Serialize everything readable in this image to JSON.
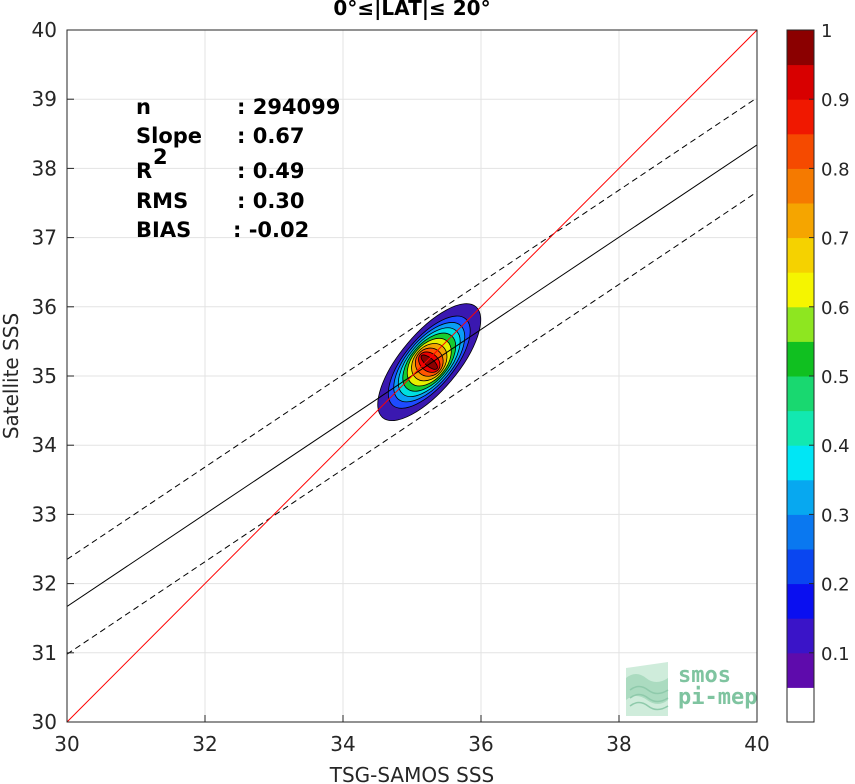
{
  "chart_data": {
    "type": "contour",
    "title": "0°≤|LAT|≤ 20°",
    "xlabel": "TSG-SAMOS SSS",
    "ylabel": "Satellite SSS",
    "xlim": [
      30,
      40
    ],
    "ylim": [
      30,
      40
    ],
    "xticks": [
      "30",
      "32",
      "34",
      "36",
      "38",
      "40"
    ],
    "yticks": [
      "30",
      "31",
      "32",
      "33",
      "34",
      "35",
      "36",
      "37",
      "38",
      "39",
      "40"
    ],
    "grid": true,
    "stats": [
      {
        "label": "n",
        "value": ": 294099"
      },
      {
        "label": "Slope",
        "value": ": 0.67"
      },
      {
        "label": "R",
        "sup": "2",
        "value": ": 0.49"
      },
      {
        "label": "RMS",
        "value": ": 0.30"
      },
      {
        "label": "BIAS",
        "value": ": -0.02"
      }
    ],
    "lines": {
      "identity": {
        "x": [
          30,
          40
        ],
        "y": [
          30,
          40
        ],
        "color": "#ff0000"
      },
      "fit": {
        "x": [
          30,
          40
        ],
        "y": [
          31.67,
          38.34
        ],
        "color": "#000000"
      },
      "fit_upper": {
        "x": [
          30,
          40
        ],
        "y": [
          32.35,
          39.02
        ],
        "color": "#000000",
        "style": "dashed"
      },
      "fit_lower": {
        "x": [
          30,
          40
        ],
        "y": [
          30.98,
          37.66
        ],
        "color": "#000000",
        "style": "dashed"
      }
    },
    "density_center": {
      "x": 35.25,
      "y": 35.2
    },
    "contour_levels": [
      {
        "level": 0.05,
        "color": "#3a18b0",
        "rx": 1.05,
        "ry": 0.3
      },
      {
        "level": 0.2,
        "color": "#1e4bff",
        "rx": 0.82,
        "ry": 0.24
      },
      {
        "level": 0.3,
        "color": "#0a9ef5",
        "rx": 0.7,
        "ry": 0.21
      },
      {
        "level": 0.4,
        "color": "#00e0e0",
        "rx": 0.6,
        "ry": 0.18
      },
      {
        "level": 0.5,
        "color": "#16cc30",
        "rx": 0.5,
        "ry": 0.155
      },
      {
        "level": 0.6,
        "color": "#e6f000",
        "rx": 0.4,
        "ry": 0.13
      },
      {
        "level": 0.7,
        "color": "#f5a500",
        "rx": 0.3,
        "ry": 0.105
      },
      {
        "level": 0.8,
        "color": "#ff5500",
        "rx": 0.21,
        "ry": 0.08
      },
      {
        "level": 0.9,
        "color": "#ee0000",
        "rx": 0.13,
        "ry": 0.055
      },
      {
        "level": 1.0,
        "color": "#8b0000",
        "rx": 0.06,
        "ry": 0.03
      }
    ],
    "colorbar": {
      "ticks": [
        "0.1",
        "0.2",
        "0.3",
        "0.4",
        "0.5",
        "0.6",
        "0.7",
        "0.8",
        "0.9",
        "1"
      ],
      "colors": [
        "#ffffff",
        "#5e0bac",
        "#3a14c8",
        "#0a0ff0",
        "#0a46f0",
        "#0a78f0",
        "#07a8f0",
        "#00e6f5",
        "#12e8b0",
        "#19d870",
        "#10c020",
        "#8ee620",
        "#f5f500",
        "#f5d200",
        "#f5a500",
        "#f57a00",
        "#f54a00",
        "#f01800",
        "#d80000",
        "#8b0000"
      ]
    },
    "logo": [
      "smos",
      "pi-mep"
    ]
  }
}
